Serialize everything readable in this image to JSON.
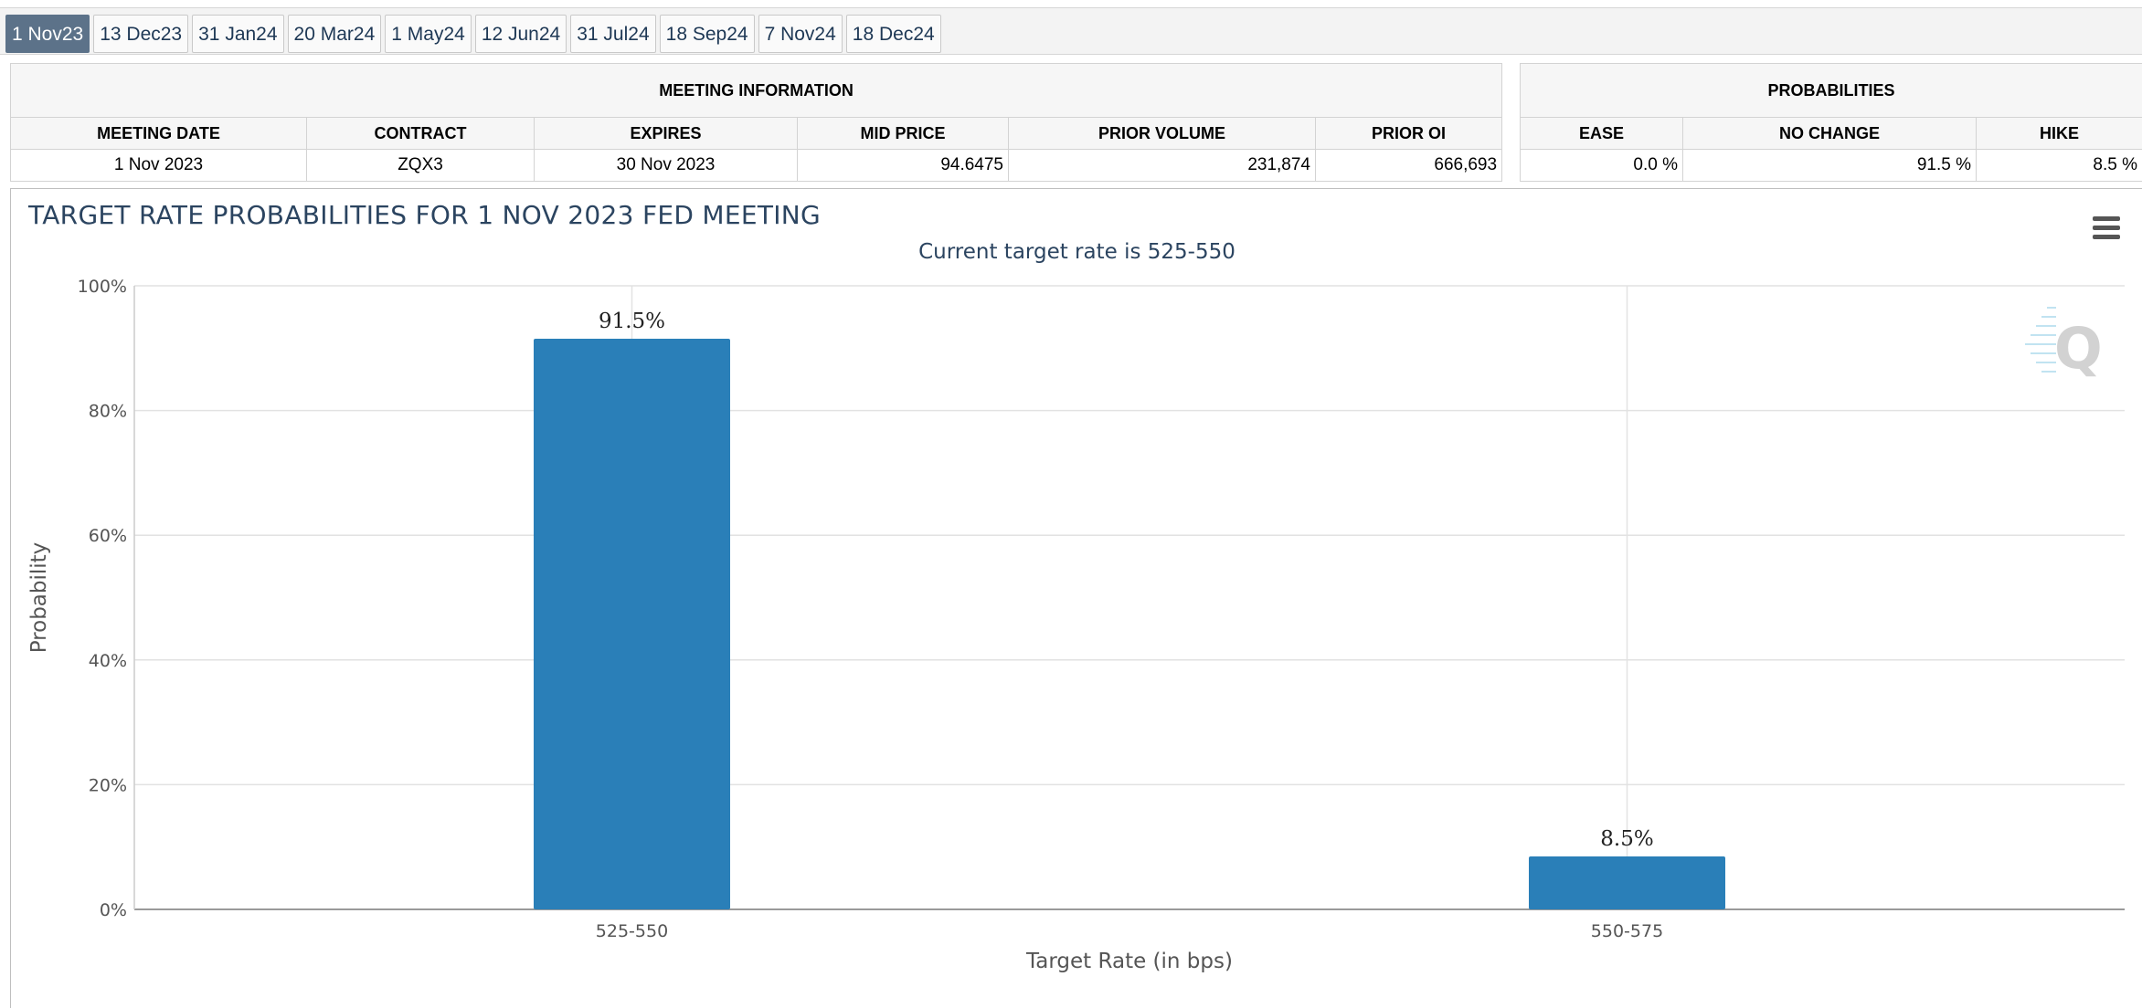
{
  "tabs": [
    "1 Nov23",
    "13 Dec23",
    "31 Jan24",
    "20 Mar24",
    "1 May24",
    "12 Jun24",
    "31 Jul24",
    "18 Sep24",
    "7 Nov24",
    "18 Dec24"
  ],
  "active_tab": "1 Nov23",
  "meeting_info": {
    "title": "MEETING INFORMATION",
    "headers": [
      "MEETING DATE",
      "CONTRACT",
      "EXPIRES",
      "MID PRICE",
      "PRIOR VOLUME",
      "PRIOR OI"
    ],
    "values": [
      "1 Nov 2023",
      "ZQX3",
      "30 Nov 2023",
      "94.6475",
      "231,874",
      "666,693"
    ]
  },
  "probabilities": {
    "title": "PROBABILITIES",
    "headers": [
      "EASE",
      "NO CHANGE",
      "HIKE"
    ],
    "values": [
      "0.0 %",
      "91.5 %",
      "8.5 %"
    ]
  },
  "chart": {
    "title": "TARGET RATE PROBABILITIES FOR 1 NOV 2023 FED MEETING",
    "subtitle": "Current target rate is 525-550",
    "menu_icon": "hamburger-menu-icon",
    "watermark_icon": "q-logo-icon"
  },
  "chart_data": {
    "type": "bar",
    "categories": [
      "525-550",
      "550-575"
    ],
    "values": [
      91.5,
      8.5
    ],
    "data_labels": [
      "91.5%",
      "8.5%"
    ],
    "xlabel": "Target Rate (in bps)",
    "ylabel": "Probability",
    "ylim": [
      0,
      100
    ],
    "yticks": [
      0,
      20,
      40,
      60,
      80,
      100
    ],
    "ytick_labels": [
      "0%",
      "20%",
      "40%",
      "60%",
      "80%",
      "100%"
    ],
    "grid": true,
    "bar_color": "#2a7fb8"
  }
}
